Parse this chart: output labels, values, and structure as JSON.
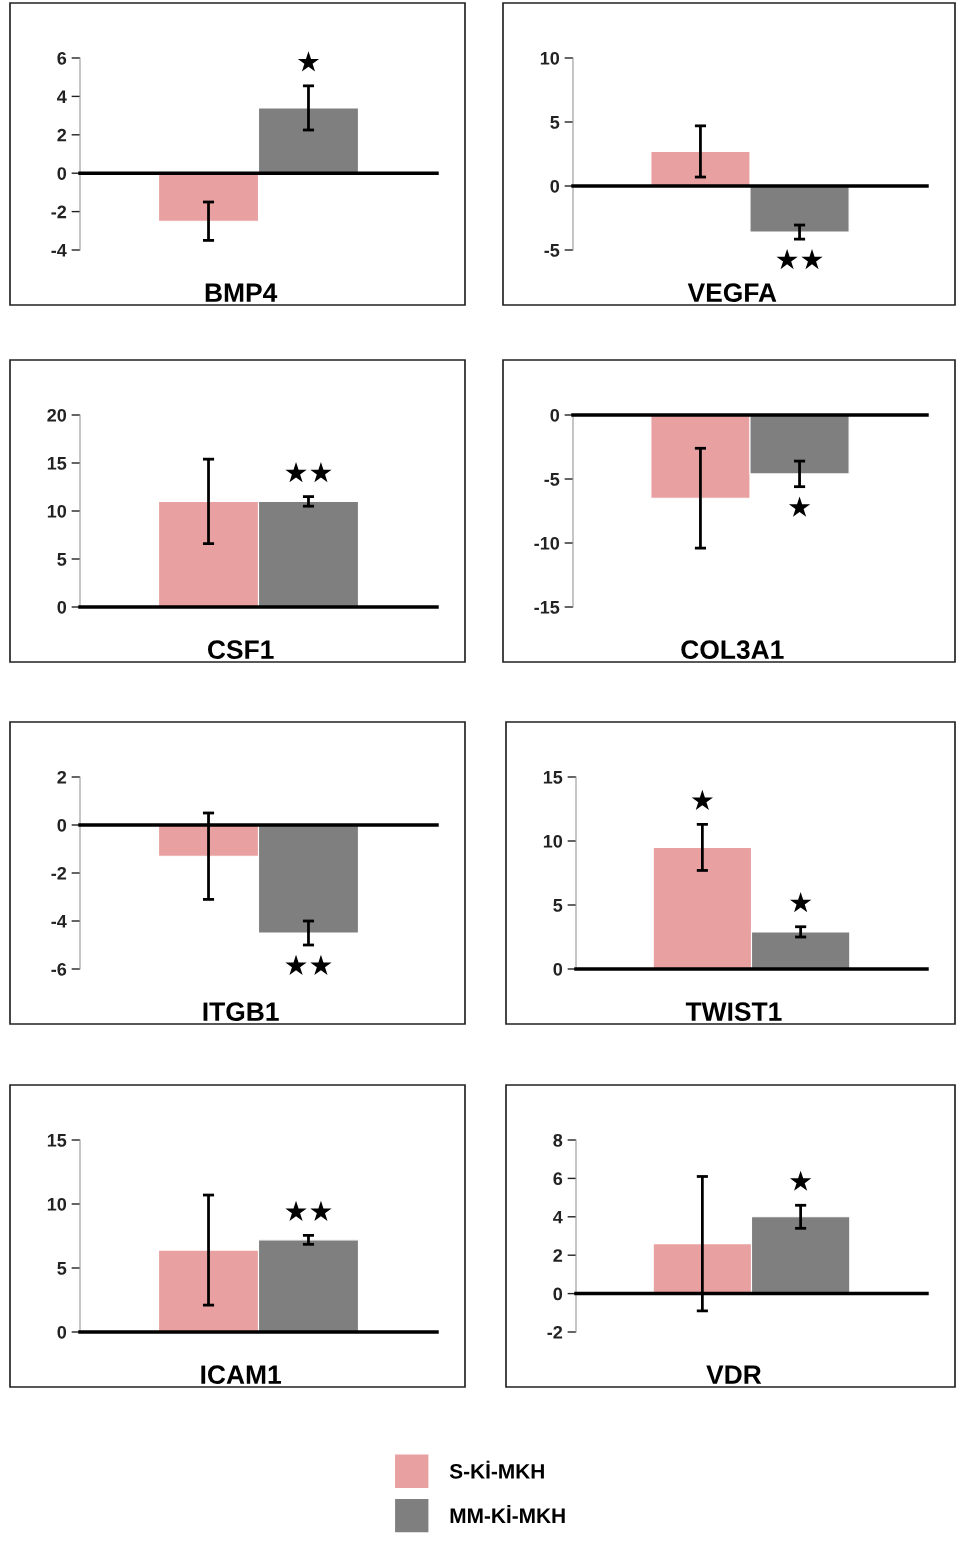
{
  "chart_data": [
    {
      "type": "bar",
      "xlabel": "BMP4",
      "categories": [
        null
      ],
      "ylim": [
        -4,
        6
      ],
      "yticks": [
        -4,
        -2,
        0,
        2,
        4,
        6
      ],
      "tick_labels": "y",
      "legend": "bottom",
      "series": [
        {
          "name": "S-Kİ-MKH",
          "color": "#e8a0a0",
          "values": [
            -2.5
          ],
          "errors": [
            1.0
          ],
          "value_labels": [
            null
          ]
        },
        {
          "name": "MM-Kİ-MKH",
          "color": "#7f7f7f",
          "values": [
            3.4
          ],
          "errors": [
            1.15
          ],
          "value_labels": [
            "★"
          ]
        }
      ]
    },
    {
      "type": "bar",
      "xlabel": "VEGFA",
      "categories": [
        null
      ],
      "ylim": [
        -5,
        10
      ],
      "yticks": [
        -5,
        0,
        5,
        10
      ],
      "tick_labels": "y",
      "series": [
        {
          "color": "#e8a0a0",
          "values": [
            2.7
          ],
          "errors": [
            2.0
          ],
          "value_labels": [
            null
          ]
        },
        {
          "color": "#7f7f7f",
          "values": [
            -3.6
          ],
          "errors": [
            0.55
          ],
          "value_labels": [
            "★★"
          ]
        }
      ]
    },
    {
      "type": "bar",
      "xlabel": "CSF1",
      "categories": [
        null
      ],
      "ylim": [
        0,
        20
      ],
      "yticks": [
        0,
        5,
        10,
        15,
        20
      ],
      "tick_labels": "y",
      "series": [
        {
          "color": "#e8a0a0",
          "values": [
            11.0
          ],
          "errors": [
            4.4
          ],
          "value_labels": [
            null
          ]
        },
        {
          "color": "#7f7f7f",
          "values": [
            11.0
          ],
          "errors": [
            0.5
          ],
          "value_labels": [
            "★★"
          ]
        }
      ]
    },
    {
      "type": "bar",
      "xlabel": "COL3A1",
      "categories": [
        null
      ],
      "ylim": [
        -15,
        0
      ],
      "yticks": [
        -15,
        -10,
        -5,
        0
      ],
      "tick_labels": "y",
      "series": [
        {
          "color": "#e8a0a0",
          "values": [
            -6.5
          ],
          "errors": [
            3.9
          ],
          "value_labels": [
            null
          ]
        },
        {
          "color": "#7f7f7f",
          "values": [
            -4.6
          ],
          "errors": [
            1.0
          ],
          "value_labels": [
            "★"
          ]
        }
      ]
    },
    {
      "type": "bar",
      "xlabel": "ITGB1",
      "categories": [
        null
      ],
      "ylim": [
        -6,
        2
      ],
      "yticks": [
        -6,
        -4,
        -2,
        0,
        2
      ],
      "tick_labels": "y",
      "series": [
        {
          "color": "#e8a0a0",
          "values": [
            -1.3
          ],
          "errors": [
            1.8
          ],
          "value_labels": [
            null
          ]
        },
        {
          "color": "#7f7f7f",
          "values": [
            -4.5
          ],
          "errors": [
            0.5
          ],
          "value_labels": [
            "★★"
          ]
        }
      ]
    },
    {
      "type": "bar",
      "xlabel": "TWIST1",
      "categories": [
        null
      ],
      "ylim": [
        0,
        15
      ],
      "yticks": [
        0,
        5,
        10,
        15
      ],
      "tick_labels": "y",
      "series": [
        {
          "color": "#e8a0a0",
          "values": [
            9.5
          ],
          "errors": [
            1.8
          ],
          "value_labels": [
            "★"
          ]
        },
        {
          "color": "#7f7f7f",
          "values": [
            2.9
          ],
          "errors": [
            0.4
          ],
          "value_labels": [
            "★"
          ]
        }
      ]
    },
    {
      "type": "bar",
      "xlabel": "ICAM1",
      "categories": [
        null
      ],
      "ylim": [
        0,
        15
      ],
      "yticks": [
        0,
        5,
        10,
        15
      ],
      "tick_labels": "y",
      "series": [
        {
          "color": "#e8a0a0",
          "values": [
            6.4
          ],
          "errors": [
            4.3
          ],
          "value_labels": [
            null
          ]
        },
        {
          "color": "#7f7f7f",
          "values": [
            7.2
          ],
          "errors": [
            0.35
          ],
          "value_labels": [
            "★★"
          ]
        }
      ]
    },
    {
      "type": "bar",
      "xlabel": "VDR",
      "categories": [
        null
      ],
      "ylim": [
        -2,
        8
      ],
      "yticks": [
        -2,
        0,
        2,
        4,
        6,
        8
      ],
      "tick_labels": "y",
      "series": [
        {
          "color": "#e8a0a0",
          "values": [
            2.6
          ],
          "errors": [
            3.5
          ],
          "value_labels": [
            null
          ]
        },
        {
          "color": "#7f7f7f",
          "values": [
            4.0
          ],
          "errors": [
            0.6
          ],
          "value_labels": [
            "★"
          ]
        }
      ]
    }
  ]
}
